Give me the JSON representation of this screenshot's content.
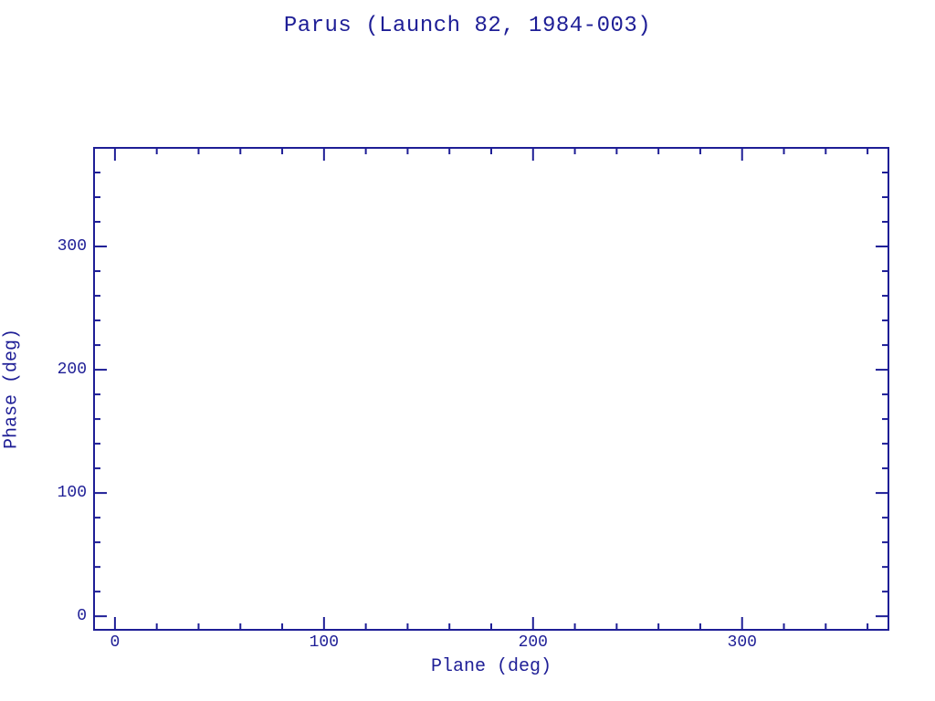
{
  "chart_data": {
    "type": "scatter",
    "title": "Parus (Launch 82, 1984-003)",
    "xlabel": "Plane (deg)",
    "ylabel": "Phase (deg)",
    "xlim": [
      -10,
      370
    ],
    "ylim": [
      -11,
      380
    ],
    "x_major_ticks": [
      0,
      100,
      200,
      300
    ],
    "y_major_ticks": [
      0,
      100,
      200,
      300
    ],
    "minor_tick_step": 20,
    "minor_tick_max": 360,
    "points": [],
    "grid": false,
    "legend": null,
    "ink_color": "#1e1e96",
    "background_color": "#ffffff",
    "tick_style": "inward, mirrored on all four sides"
  }
}
